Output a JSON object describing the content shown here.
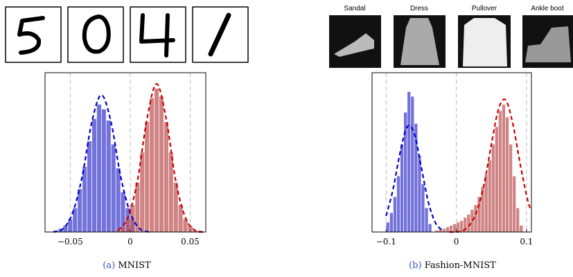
{
  "fashion_labels": [
    "Sandal",
    "Dress",
    "Pullover",
    "Ankle boot"
  ],
  "captions": [
    {
      "label": "(a)",
      "text": "MNIST"
    },
    {
      "label": "(b)",
      "text": "Fashion-MNIST"
    }
  ],
  "chart_data": [
    {
      "type": "histogram",
      "xlim": [
        -0.071,
        0.063
      ],
      "ylim": [
        0,
        100
      ],
      "xticks": [
        {
          "value": -0.05,
          "label": "−0.05"
        },
        0,
        0.05
      ],
      "grid": true,
      "series": [
        {
          "color": "#6a6ad8",
          "bins": [
            -0.064,
            -0.06,
            -0.056,
            -0.052,
            -0.048,
            -0.044,
            -0.04,
            -0.036,
            -0.032,
            -0.028,
            -0.024,
            -0.02,
            -0.016,
            -0.012,
            -0.008,
            -0.004,
            0,
            0.004
          ],
          "values": [
            1,
            2,
            4,
            8,
            15,
            27,
            41,
            57,
            71,
            80,
            77,
            70,
            55,
            40,
            25,
            15,
            8
          ]
        },
        {
          "color": "#c05a5a",
          "bins": [
            -0.012,
            -0.008,
            -0.004,
            0,
            0.004,
            0.008,
            0.012,
            0.016,
            0.02,
            0.024,
            0.028,
            0.032,
            0.036,
            0.04,
            0.044,
            0.048,
            0.052,
            0.056,
            0.06
          ],
          "values": [
            1,
            3,
            8,
            17,
            31,
            50,
            69,
            84,
            90,
            85,
            69,
            50,
            31,
            17,
            8,
            4,
            1,
            1
          ]
        }
      ],
      "fits": [
        {
          "color": "#0000cc",
          "x": [
            -0.064,
            -0.056,
            -0.048,
            -0.04,
            -0.032,
            -0.024,
            -0.016,
            -0.008,
            0,
            0.008,
            0.016
          ],
          "values": [
            0,
            2,
            12,
            35,
            69,
            86,
            69,
            35,
            12,
            2,
            0
          ]
        },
        {
          "color": "#cc0000",
          "x": [
            -0.01,
            -0.002,
            0.006,
            0.014,
            0.022,
            0.03,
            0.038,
            0.046,
            0.054,
            0.062
          ],
          "values": [
            1,
            9,
            32,
            71,
            93,
            71,
            32,
            9,
            1,
            0
          ]
        }
      ]
    },
    {
      "type": "histogram",
      "xlim": [
        -0.12,
        0.107
      ],
      "ylim": [
        0,
        100
      ],
      "xticks": [
        {
          "value": -0.1,
          "label": "−0.1"
        },
        0,
        0.1
      ],
      "grid": true,
      "series": [
        {
          "color": "#6a6ad8",
          "bins": [
            -0.1,
            -0.095,
            -0.09,
            -0.085,
            -0.08,
            -0.075,
            -0.07,
            -0.065,
            -0.06,
            -0.055,
            -0.05,
            -0.045,
            -0.04,
            -0.035
          ],
          "values": [
            6,
            12,
            22,
            35,
            55,
            75,
            88,
            85,
            68,
            48,
            30,
            15,
            5
          ]
        },
        {
          "color": "#c05a5a",
          "bins": [
            -0.03,
            -0.025,
            -0.02,
            -0.015,
            -0.01,
            -0.005,
            0,
            0.005,
            0.01,
            0.015,
            0.02,
            0.025,
            0.03,
            0.035,
            0.04,
            0.045,
            0.05,
            0.055,
            0.06,
            0.065,
            0.07,
            0.075,
            0.08,
            0.085,
            0.09,
            0.095
          ],
          "values": [
            1,
            2,
            2,
            3,
            4,
            5,
            6,
            7,
            9,
            11,
            14,
            17,
            22,
            28,
            36,
            45,
            55,
            66,
            76,
            80,
            72,
            55,
            35,
            15,
            4
          ]
        }
      ],
      "fits": [
        {
          "color": "#0000cc",
          "x": [
            -0.1,
            -0.09,
            -0.08,
            -0.07,
            -0.06,
            -0.05,
            -0.04,
            -0.03,
            -0.02
          ],
          "values": [
            10,
            27,
            50,
            66,
            62,
            41,
            19,
            6,
            1
          ]
        },
        {
          "color": "#cc0000",
          "x": [
            -0.01,
            0,
            0.01,
            0.02,
            0.03,
            0.04,
            0.05,
            0.06,
            0.07,
            0.08,
            0.09,
            0.1,
            0.105
          ],
          "values": [
            0,
            0,
            1,
            5,
            14,
            31,
            55,
            77,
            83,
            69,
            45,
            23,
            15
          ]
        }
      ]
    }
  ]
}
